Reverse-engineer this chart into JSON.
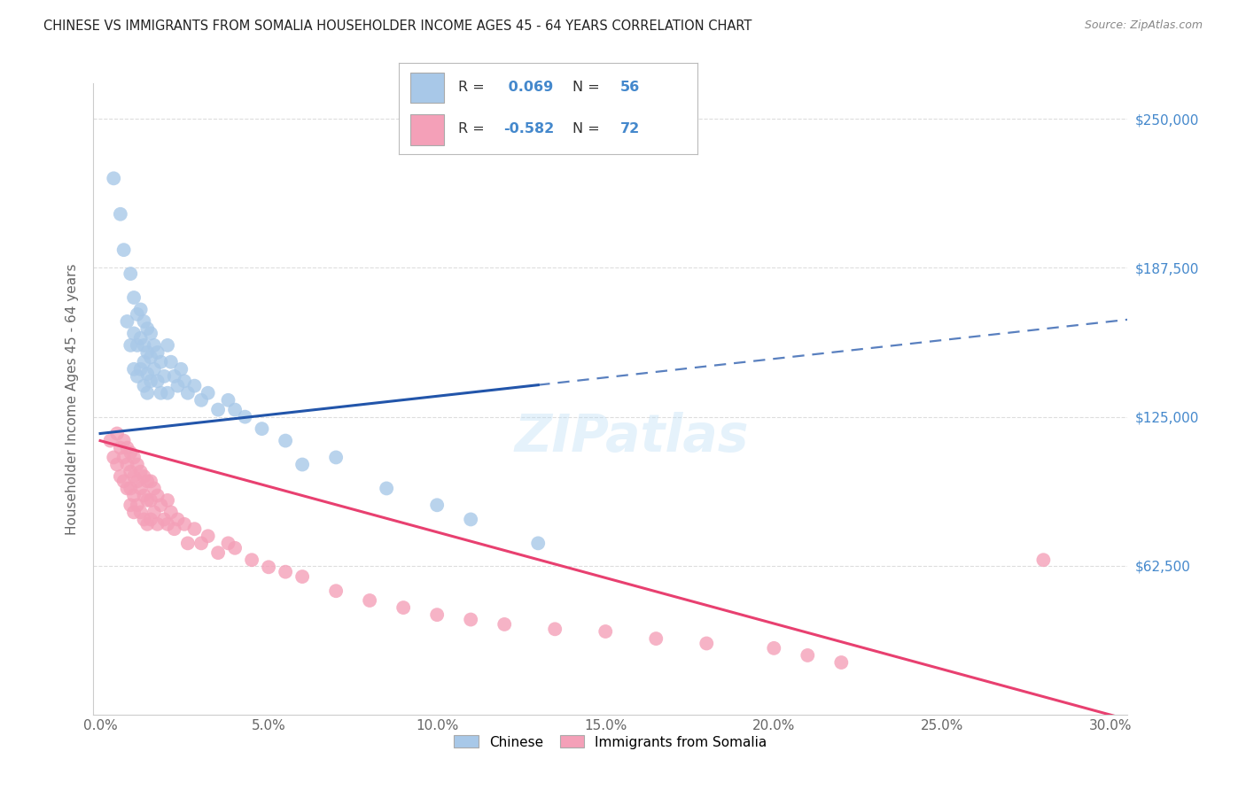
{
  "title": "CHINESE VS IMMIGRANTS FROM SOMALIA HOUSEHOLDER INCOME AGES 45 - 64 YEARS CORRELATION CHART",
  "source": "Source: ZipAtlas.com",
  "ylabel": "Householder Income Ages 45 - 64 years",
  "xlabel_ticks": [
    "0.0%",
    "5.0%",
    "10.0%",
    "15.0%",
    "20.0%",
    "25.0%",
    "30.0%"
  ],
  "xlabel_vals": [
    0.0,
    0.05,
    0.1,
    0.15,
    0.2,
    0.25,
    0.3
  ],
  "ytick_labels": [
    "$62,500",
    "$125,000",
    "$187,500",
    "$250,000"
  ],
  "ytick_vals": [
    62500,
    125000,
    187500,
    250000
  ],
  "ylim": [
    0,
    265000
  ],
  "xlim": [
    -0.002,
    0.305
  ],
  "chinese_R": 0.069,
  "chinese_N": 56,
  "somalia_R": -0.582,
  "somalia_N": 72,
  "chinese_color": "#a8c8e8",
  "somalia_color": "#f4a0b8",
  "chinese_line_color": "#2255aa",
  "somalia_line_color": "#e84070",
  "watermark": "ZIPatlas",
  "background_color": "#ffffff",
  "grid_color": "#dddddd",
  "title_color": "#222222",
  "right_axis_color": "#4488cc",
  "chinese_scatter_x": [
    0.004,
    0.006,
    0.007,
    0.008,
    0.009,
    0.009,
    0.01,
    0.01,
    0.01,
    0.011,
    0.011,
    0.011,
    0.012,
    0.012,
    0.012,
    0.013,
    0.013,
    0.013,
    0.013,
    0.014,
    0.014,
    0.014,
    0.014,
    0.015,
    0.015,
    0.015,
    0.016,
    0.016,
    0.017,
    0.017,
    0.018,
    0.018,
    0.019,
    0.02,
    0.02,
    0.021,
    0.022,
    0.023,
    0.024,
    0.025,
    0.026,
    0.028,
    0.03,
    0.032,
    0.035,
    0.038,
    0.04,
    0.043,
    0.048,
    0.055,
    0.06,
    0.07,
    0.085,
    0.1,
    0.11,
    0.13
  ],
  "chinese_scatter_y": [
    225000,
    210000,
    195000,
    165000,
    185000,
    155000,
    175000,
    160000,
    145000,
    168000,
    155000,
    142000,
    170000,
    158000,
    145000,
    165000,
    155000,
    148000,
    138000,
    162000,
    152000,
    143000,
    135000,
    160000,
    150000,
    140000,
    155000,
    145000,
    152000,
    140000,
    148000,
    135000,
    142000,
    155000,
    135000,
    148000,
    142000,
    138000,
    145000,
    140000,
    135000,
    138000,
    132000,
    135000,
    128000,
    132000,
    128000,
    125000,
    120000,
    115000,
    105000,
    108000,
    95000,
    88000,
    82000,
    72000
  ],
  "somalia_scatter_x": [
    0.003,
    0.004,
    0.005,
    0.005,
    0.006,
    0.006,
    0.007,
    0.007,
    0.007,
    0.008,
    0.008,
    0.008,
    0.009,
    0.009,
    0.009,
    0.009,
    0.01,
    0.01,
    0.01,
    0.01,
    0.011,
    0.011,
    0.011,
    0.012,
    0.012,
    0.012,
    0.013,
    0.013,
    0.013,
    0.014,
    0.014,
    0.014,
    0.015,
    0.015,
    0.015,
    0.016,
    0.016,
    0.017,
    0.017,
    0.018,
    0.019,
    0.02,
    0.02,
    0.021,
    0.022,
    0.023,
    0.025,
    0.026,
    0.028,
    0.03,
    0.032,
    0.035,
    0.038,
    0.04,
    0.045,
    0.05,
    0.055,
    0.06,
    0.07,
    0.08,
    0.09,
    0.1,
    0.11,
    0.12,
    0.135,
    0.15,
    0.165,
    0.18,
    0.2,
    0.21,
    0.22,
    0.28
  ],
  "somalia_scatter_y": [
    115000,
    108000,
    118000,
    105000,
    112000,
    100000,
    115000,
    108000,
    98000,
    112000,
    105000,
    95000,
    110000,
    102000,
    95000,
    88000,
    108000,
    100000,
    92000,
    85000,
    105000,
    98000,
    88000,
    102000,
    95000,
    85000,
    100000,
    92000,
    82000,
    98000,
    90000,
    80000,
    98000,
    90000,
    82000,
    95000,
    85000,
    92000,
    80000,
    88000,
    82000,
    90000,
    80000,
    85000,
    78000,
    82000,
    80000,
    72000,
    78000,
    72000,
    75000,
    68000,
    72000,
    70000,
    65000,
    62000,
    60000,
    58000,
    52000,
    48000,
    45000,
    42000,
    40000,
    38000,
    36000,
    35000,
    32000,
    30000,
    28000,
    25000,
    22000,
    65000
  ],
  "chinese_line_x_start": 0.0,
  "chinese_line_x_solid_end": 0.13,
  "chinese_line_x_end": 0.305,
  "somalia_line_x_start": 0.0,
  "somalia_line_x_end": 0.305
}
